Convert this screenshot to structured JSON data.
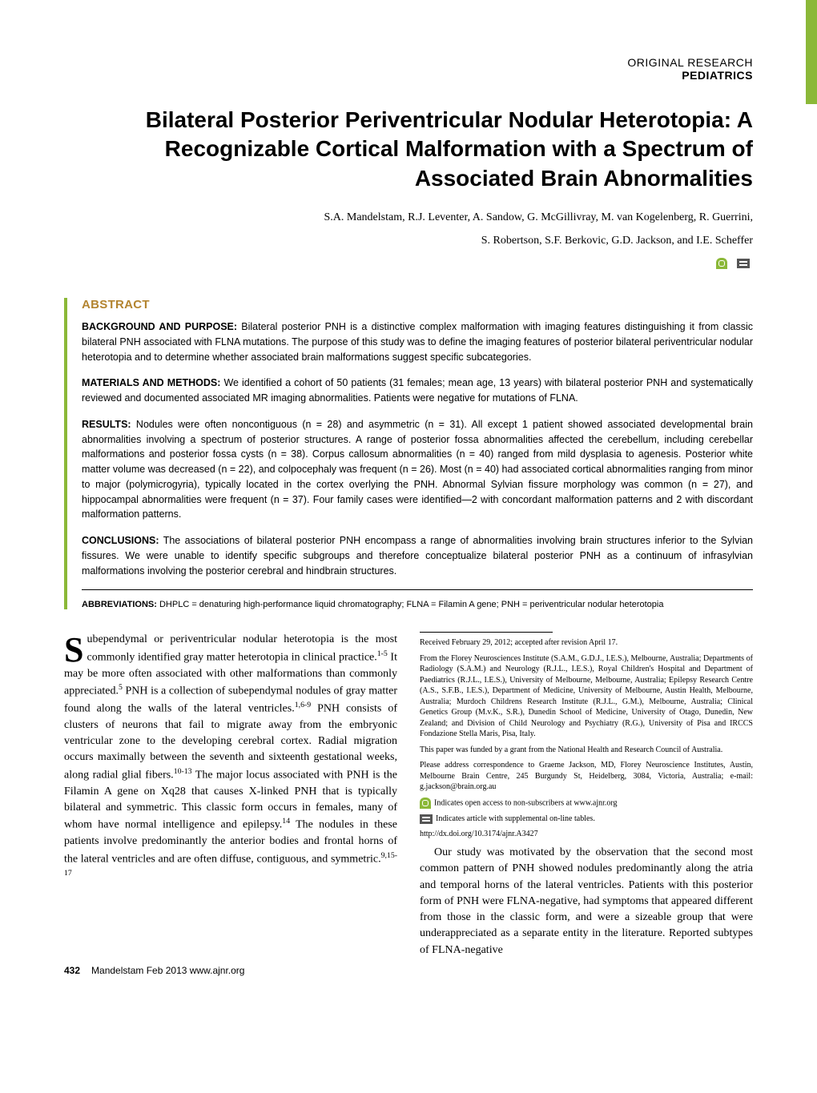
{
  "header": {
    "category_line1": "ORIGINAL RESEARCH",
    "category_line2": "PEDIATRICS"
  },
  "title": "Bilateral Posterior Periventricular Nodular Heterotopia: A Recognizable Cortical Malformation with a Spectrum of Associated Brain Abnormalities",
  "authors_line1": "S.A. Mandelstam, R.J. Leventer, A. Sandow, G. McGillivray, M. van Kogelenberg, R. Guerrini,",
  "authors_line2": "S. Robertson, S.F. Berkovic, G.D. Jackson, and I.E. Scheffer",
  "abstract": {
    "heading": "ABSTRACT",
    "background_label": "BACKGROUND AND PURPOSE:",
    "background": "Bilateral posterior PNH is a distinctive complex malformation with imaging features distinguishing it from classic bilateral PNH associated with FLNA mutations. The purpose of this study was to define the imaging features of posterior bilateral periventricular nodular heterotopia and to determine whether associated brain malformations suggest specific subcategories.",
    "methods_label": "MATERIALS AND METHODS:",
    "methods": "We identified a cohort of 50 patients (31 females; mean age, 13 years) with bilateral posterior PNH and systematically reviewed and documented associated MR imaging abnormalities. Patients were negative for mutations of FLNA.",
    "results_label": "RESULTS:",
    "results": "Nodules were often noncontiguous (n = 28) and asymmetric (n = 31). All except 1 patient showed associated developmental brain abnormalities involving a spectrum of posterior structures. A range of posterior fossa abnormalities affected the cerebellum, including cerebellar malformations and posterior fossa cysts (n = 38). Corpus callosum abnormalities (n = 40) ranged from mild dysplasia to agenesis. Posterior white matter volume was decreased (n = 22), and colpocephaly was frequent (n = 26). Most (n = 40) had associated cortical abnormalities ranging from minor to major (polymicrogyria), typically located in the cortex overlying the PNH. Abnormal Sylvian fissure morphology was common (n = 27), and hippocampal abnormalities were frequent (n = 37). Four family cases were identified—2 with concordant malformation patterns and 2 with discordant malformation patterns.",
    "conclusions_label": "CONCLUSIONS:",
    "conclusions": "The associations of bilateral posterior PNH encompass a range of abnormalities involving brain structures inferior to the Sylvian fissures. We were unable to identify specific subgroups and therefore conceptualize bilateral posterior PNH as a continuum of infrasylvian malformations involving the posterior cerebral and hindbrain structures.",
    "abbrev_label": "ABBREVIATIONS:",
    "abbrev": "DHPLC = denaturing high-performance liquid chromatography; FLNA = Filamin A gene; PNH = periventricular nodular heterotopia"
  },
  "body": {
    "dropcap": "S",
    "p1_rest": "ubependymal or periventricular nodular heterotopia is the most commonly identified gray matter heterotopia in clinical practice.",
    "p1_sup": "1-5",
    "p1_tail": " It may be more often associated with other malformations than commonly appreciated.",
    "p1_sup2": "5",
    "p1_tail2": " PNH is a collection of sub",
    "p2a": "ependymal nodules of gray matter found along the walls of the lateral ventricles.",
    "p2_sup1": "1,6-9",
    "p2b": " PNH consists of clusters of neurons that fail to migrate away from the embryonic ventricular zone to the developing cerebral cortex. Radial migration occurs maximally between the seventh and sixteenth gestational weeks, along radial glial fibers.",
    "p2_sup2": "10-13",
    "p2c": " The major locus associated with PNH is the Filamin A gene on Xq28 that causes X-linked PNH that is typically bilateral and symmetric. This classic form occurs in females, many of whom have normal intelligence and epilepsy.",
    "p2_sup3": "14",
    "p2d": " The nodules in these patients involve predominantly the anterior bodies and frontal horns of the lateral ventricles and are often diffuse, contiguous, and symmetric.",
    "p2_sup4": "9,15-17",
    "p3": "Our study was motivated by the observation that the second most common pattern of PNH showed nodules predominantly along the atria and temporal horns of the lateral ventricles. Patients with this posterior form of PNH were FLNA-negative, had symptoms that appeared different from those in the classic form, and were a sizeable group that were underappreciated as a separate entity in the literature. Reported subtypes of FLNA-negative"
  },
  "footnotes": {
    "received": "Received February 29, 2012; accepted after revision April 17.",
    "affiliations": "From the Florey Neurosciences Institute (S.A.M., G.D.J., I.E.S.), Melbourne, Australia; Departments of Radiology (S.A.M.) and Neurology (R.J.L., I.E.S.), Royal Children's Hospital and Department of Paediatrics (R.J.L., I.E.S.), University of Melbourne, Melbourne, Australia; Epilepsy Research Centre (A.S., S.F.B., I.E.S.), Department of Medicine, University of Melbourne, Austin Health, Melbourne, Australia; Murdoch Childrens Research Institute (R.J.L., G.M.), Melbourne, Australia; Clinical Genetics Group (M.v.K., S.R.), Dunedin School of Medicine, University of Otago, Dunedin, New Zealand; and Division of Child Neurology and Psychiatry (R.G.), University of Pisa and IRCCS Fondazione Stella Maris, Pisa, Italy.",
    "funding": "This paper was funded by a grant from the National Health and Research Council of Australia.",
    "correspondence": "Please address correspondence to Graeme Jackson, MD, Florey Neuroscience Institutes, Austin, Melbourne Brain Centre, 245 Burgundy St, Heidelberg, 3084, Victoria, Australia; e-mail: g.jackson@brain.org.au",
    "open_access": "Indicates open access to non-subscribers at www.ajnr.org",
    "supplemental": "Indicates article with supplemental on-line tables.",
    "doi": "http://dx.doi.org/10.3174/ajnr.A3427"
  },
  "footer": {
    "page_number": "432",
    "citation": "Mandelstam  Feb 2013  www.ajnr.org"
  },
  "colors": {
    "accent_green": "#8bb838",
    "heading_tan": "#b38430"
  }
}
